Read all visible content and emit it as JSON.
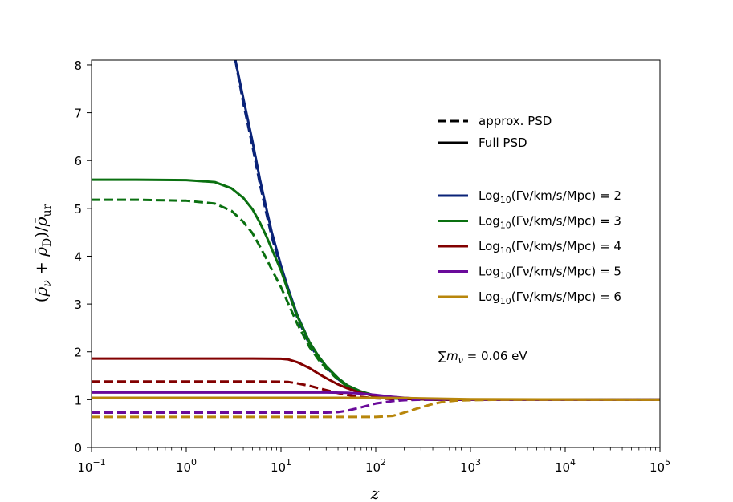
{
  "chart_data": {
    "type": "line",
    "xlabel": "z",
    "ylabel": "(ρ̄ν + ρ̄D)/ρ̄ur",
    "xscale": "log",
    "xlim": [
      0.1,
      100000
    ],
    "ylim": [
      0,
      8.1
    ],
    "grid": false,
    "legend_placement": "right",
    "x_tick_values": [
      0.1,
      1,
      10,
      100,
      1000,
      10000,
      100000
    ],
    "x_tick_labels": [
      {
        "base": "10",
        "exp": "−1"
      },
      {
        "base": "10",
        "exp": "0"
      },
      {
        "base": "10",
        "exp": "1"
      },
      {
        "base": "10",
        "exp": "2"
      },
      {
        "base": "10",
        "exp": "3"
      },
      {
        "base": "10",
        "exp": "4"
      },
      {
        "base": "10",
        "exp": "5"
      }
    ],
    "y_ticks": [
      0,
      1,
      2,
      3,
      4,
      5,
      6,
      7,
      8
    ],
    "y_tick_labels": [
      "0",
      "1",
      "2",
      "3",
      "4",
      "5",
      "6",
      "7",
      "8"
    ],
    "style_legend": [
      {
        "label": "approx. PSD",
        "dash": "dashed"
      },
      {
        "label": "Full PSD",
        "dash": "solid"
      }
    ],
    "series": [
      {
        "name": "Log10(Γν/km/s/Mpc) = 2",
        "legend_prefix": "Log",
        "legend_sub": "10",
        "legend_suffix": "(Γν/km/s/Mpc) = 2",
        "color": "#0a2378",
        "dash": "solid",
        "x": [
          3.3,
          4,
          5,
          6,
          7,
          8,
          10,
          12,
          15,
          20,
          25,
          30,
          40,
          50,
          70,
          100,
          150,
          200,
          300,
          500,
          1000,
          10000,
          100000
        ],
        "y": [
          8.1,
          7.3,
          6.4,
          5.6,
          5.0,
          4.5,
          3.8,
          3.3,
          2.75,
          2.2,
          1.9,
          1.7,
          1.45,
          1.3,
          1.17,
          1.08,
          1.04,
          1.02,
          1.01,
          1.0,
          1.0,
          1.0,
          1.0
        ]
      },
      {
        "name": "approx Log10 = 2",
        "color": "#0a2378",
        "dash": "dashed",
        "x": [
          3.3,
          4,
          5,
          6,
          7,
          8,
          10,
          12,
          15,
          20,
          25,
          30,
          40,
          50,
          70,
          100,
          150,
          200,
          300,
          500,
          1000,
          10000,
          100000
        ],
        "y": [
          8.1,
          7.2,
          6.3,
          5.5,
          4.9,
          4.4,
          3.75,
          3.25,
          2.7,
          2.15,
          1.87,
          1.68,
          1.43,
          1.28,
          1.15,
          1.07,
          1.03,
          1.02,
          1.01,
          1.0,
          1.0,
          1.0,
          1.0
        ]
      },
      {
        "name": "Log10(Γν/km/s/Mpc) = 3",
        "legend_prefix": "Log",
        "legend_sub": "10",
        "legend_suffix": "(Γν/km/s/Mpc) = 3",
        "color": "#0a7010",
        "dash": "solid",
        "x": [
          0.1,
          0.3,
          1,
          2,
          3,
          4,
          5,
          6,
          7,
          8,
          10,
          12,
          15,
          20,
          25,
          30,
          40,
          50,
          70,
          100,
          150,
          200,
          300,
          500,
          1000,
          100000
        ],
        "y": [
          5.6,
          5.6,
          5.59,
          5.55,
          5.42,
          5.22,
          4.98,
          4.7,
          4.42,
          4.15,
          3.7,
          3.25,
          2.73,
          2.2,
          1.9,
          1.7,
          1.45,
          1.3,
          1.17,
          1.08,
          1.04,
          1.02,
          1.01,
          1.0,
          1.0,
          1.0
        ]
      },
      {
        "name": "approx Log10 = 3",
        "color": "#0a7010",
        "dash": "dashed",
        "x": [
          0.1,
          0.3,
          1,
          2,
          3,
          4,
          5,
          6,
          7,
          8,
          10,
          12,
          15,
          20,
          25,
          30,
          40,
          50,
          70,
          100,
          150,
          200,
          300,
          500,
          1000,
          100000
        ],
        "y": [
          5.18,
          5.18,
          5.16,
          5.1,
          4.95,
          4.72,
          4.48,
          4.2,
          3.95,
          3.72,
          3.35,
          3.0,
          2.57,
          2.1,
          1.83,
          1.65,
          1.42,
          1.28,
          1.15,
          1.07,
          1.03,
          1.02,
          1.01,
          1.0,
          1.0,
          1.0
        ]
      },
      {
        "name": "Log10(Γν/km/s/Mpc) = 4",
        "legend_prefix": "Log",
        "legend_sub": "10",
        "legend_suffix": "(Γν/km/s/Mpc) = 4",
        "color": "#820000",
        "dash": "solid",
        "x": [
          0.1,
          1,
          5,
          10,
          12,
          15,
          20,
          25,
          30,
          40,
          50,
          70,
          100,
          150,
          200,
          300,
          500,
          1000,
          100000
        ],
        "y": [
          1.86,
          1.86,
          1.86,
          1.855,
          1.84,
          1.78,
          1.66,
          1.54,
          1.45,
          1.32,
          1.24,
          1.14,
          1.08,
          1.04,
          1.02,
          1.01,
          1.0,
          1.0,
          1.0
        ]
      },
      {
        "name": "approx Log10 = 4",
        "color": "#820000",
        "dash": "dashed",
        "x": [
          0.1,
          1,
          5,
          10,
          12,
          15,
          20,
          25,
          30,
          40,
          50,
          70,
          100,
          150,
          200,
          300,
          500,
          1000,
          100000
        ],
        "y": [
          1.38,
          1.38,
          1.38,
          1.375,
          1.37,
          1.34,
          1.29,
          1.24,
          1.2,
          1.14,
          1.1,
          1.06,
          1.03,
          1.015,
          1.01,
          1.0,
          1.0,
          1.0,
          1.0
        ]
      },
      {
        "name": "Log10(Γν/km/s/Mpc) = 5",
        "legend_prefix": "Log",
        "legend_sub": "10",
        "legend_suffix": "(Γν/km/s/Mpc) = 5",
        "color": "#6a0a9a",
        "dash": "solid",
        "x": [
          0.1,
          1,
          10,
          30,
          50,
          70,
          100,
          150,
          200,
          300,
          500,
          1000,
          100000
        ],
        "y": [
          1.15,
          1.15,
          1.15,
          1.15,
          1.145,
          1.13,
          1.1,
          1.06,
          1.04,
          1.02,
          1.01,
          1.0,
          1.0
        ]
      },
      {
        "name": "approx Log10 = 5",
        "color": "#6a0a9a",
        "dash": "dashed",
        "x": [
          0.1,
          1,
          10,
          30,
          40,
          50,
          70,
          100,
          150,
          200,
          300,
          500,
          1000,
          100000
        ],
        "y": [
          0.73,
          0.73,
          0.73,
          0.73,
          0.74,
          0.77,
          0.84,
          0.92,
          0.97,
          0.99,
          1.0,
          1.0,
          1.0,
          1.0
        ]
      },
      {
        "name": "Log10(Γν/km/s/Mpc) = 6",
        "legend_prefix": "Log",
        "legend_sub": "10",
        "legend_suffix": "(Γν/km/s/Mpc) = 6",
        "color": "#b8860b",
        "dash": "solid",
        "x": [
          0.1,
          1,
          10,
          100,
          200,
          500,
          1000,
          100000
        ],
        "y": [
          1.04,
          1.04,
          1.04,
          1.04,
          1.035,
          1.02,
          1.01,
          1.0
        ]
      },
      {
        "name": "approx Log10 = 6",
        "color": "#b8860b",
        "dash": "dashed",
        "x": [
          0.1,
          1,
          10,
          100,
          150,
          200,
          300,
          400,
          500,
          700,
          1000,
          2000,
          100000
        ],
        "y": [
          0.64,
          0.64,
          0.64,
          0.64,
          0.66,
          0.73,
          0.84,
          0.91,
          0.95,
          0.98,
          0.99,
          1.0,
          1.0
        ]
      }
    ],
    "annotation": {
      "prefix": "∑m",
      "sub": "ν",
      "suffix": " = 0.06 eV"
    }
  }
}
